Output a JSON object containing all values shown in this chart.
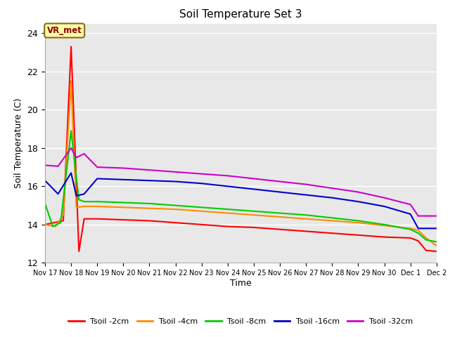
{
  "title": "Soil Temperature Set 3",
  "xlabel": "Time",
  "ylabel": "Soil Temperature (C)",
  "ylim": [
    12,
    24.5
  ],
  "background_color": "#e8e8e8",
  "grid_color": "white",
  "annotation_text": "VR_met",
  "annotation_color": "#8b0000",
  "annotation_bg": "#ffffaa",
  "annotation_border": "#8b6914",
  "xtick_labels": [
    "Nov 17",
    "Nov 18",
    "Nov 19",
    "Nov 20",
    "Nov 21",
    "Nov 22",
    "Nov 23",
    "Nov 24",
    "Nov 25",
    "Nov 26",
    "Nov 27",
    "Nov 28",
    "Nov 29",
    "Nov 30",
    "Dec 1",
    "Dec 2"
  ],
  "ytick_values": [
    12,
    14,
    16,
    18,
    20,
    22,
    24
  ],
  "series": {
    "Tsoil -2cm": {
      "color": "#ff0000",
      "x": [
        0,
        0.7,
        1.0,
        1.15,
        1.3,
        1.5,
        2,
        3,
        4,
        5,
        6,
        7,
        8,
        9,
        10,
        11,
        12,
        13,
        14,
        14.3,
        14.6,
        15
      ],
      "y": [
        14.0,
        14.2,
        23.3,
        18.0,
        12.6,
        14.3,
        14.3,
        14.25,
        14.2,
        14.1,
        14.0,
        13.9,
        13.85,
        13.75,
        13.65,
        13.55,
        13.45,
        13.35,
        13.3,
        13.15,
        12.65,
        12.6
      ]
    },
    "Tsoil -4cm": {
      "color": "#ff8c00",
      "x": [
        0,
        0.4,
        0.7,
        1.0,
        1.2,
        1.5,
        2,
        3,
        4,
        5,
        6,
        7,
        8,
        9,
        10,
        11,
        12,
        13,
        14,
        14.3,
        14.6,
        15
      ],
      "y": [
        14.0,
        13.9,
        14.5,
        21.5,
        14.9,
        14.95,
        14.95,
        14.9,
        14.85,
        14.8,
        14.7,
        14.6,
        14.5,
        14.4,
        14.3,
        14.2,
        14.1,
        13.95,
        13.8,
        13.7,
        13.3,
        12.9
      ]
    },
    "Tsoil -8cm": {
      "color": "#00cc00",
      "x": [
        0,
        0.3,
        0.6,
        1.0,
        1.3,
        1.5,
        2,
        3,
        4,
        5,
        6,
        7,
        8,
        9,
        10,
        11,
        12,
        13,
        14,
        14.3,
        14.6,
        15
      ],
      "y": [
        15.1,
        13.9,
        14.1,
        18.9,
        15.3,
        15.2,
        15.2,
        15.15,
        15.1,
        15.0,
        14.9,
        14.8,
        14.7,
        14.6,
        14.5,
        14.35,
        14.2,
        14.0,
        13.75,
        13.55,
        13.2,
        13.1
      ]
    },
    "Tsoil -16cm": {
      "color": "#0000cc",
      "x": [
        0,
        0.5,
        1.0,
        1.2,
        1.5,
        2,
        3,
        4,
        5,
        6,
        7,
        8,
        9,
        10,
        11,
        12,
        13,
        14,
        14.3,
        14.6,
        15
      ],
      "y": [
        16.3,
        15.6,
        16.7,
        15.5,
        15.6,
        16.4,
        16.35,
        16.3,
        16.25,
        16.15,
        16.0,
        15.85,
        15.7,
        15.55,
        15.4,
        15.2,
        14.95,
        14.55,
        13.8,
        13.8,
        13.8
      ]
    },
    "Tsoil -32cm": {
      "color": "#cc00cc",
      "x": [
        0,
        0.5,
        1.0,
        1.2,
        1.5,
        2,
        3,
        4,
        5,
        6,
        7,
        8,
        9,
        10,
        11,
        12,
        13,
        14,
        14.3,
        14.6,
        15
      ],
      "y": [
        17.1,
        17.05,
        18.0,
        17.5,
        17.7,
        17.0,
        16.95,
        16.85,
        16.75,
        16.65,
        16.55,
        16.4,
        16.25,
        16.1,
        15.9,
        15.7,
        15.4,
        15.05,
        14.45,
        14.45,
        14.45
      ]
    }
  }
}
